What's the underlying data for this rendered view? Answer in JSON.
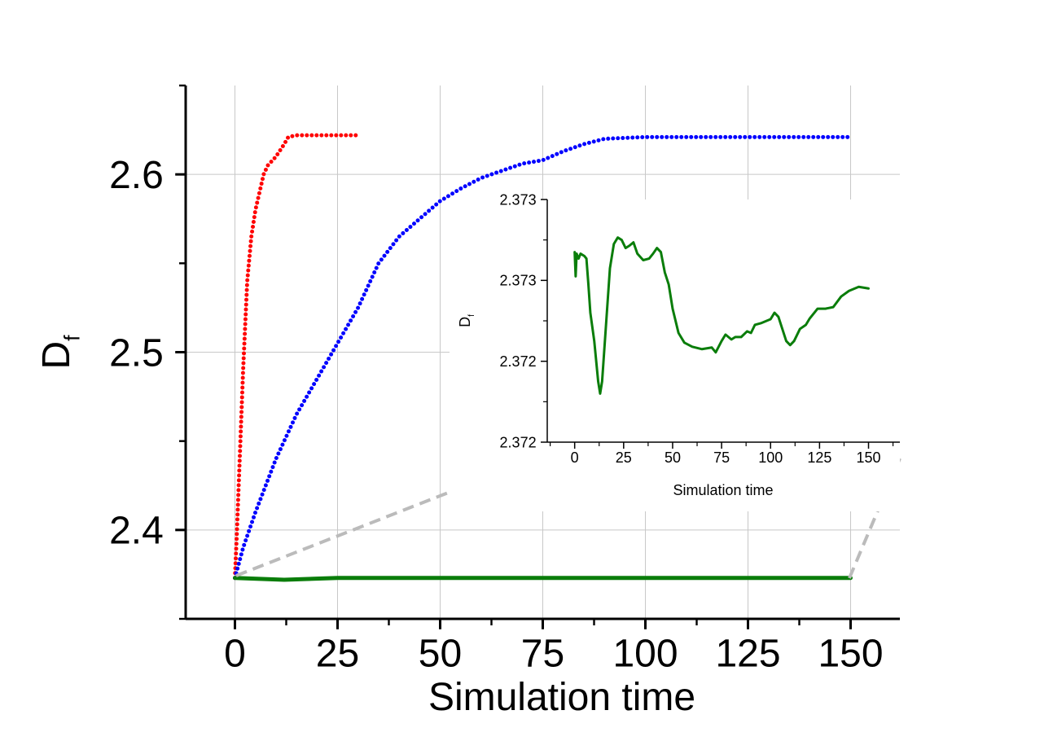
{
  "chart_data": [
    {
      "type": "line",
      "xlabel": "Simulation time",
      "ylabel": "D",
      "ylabel_subscript": "f",
      "xlim": [
        -12,
        162
      ],
      "xticks": [
        0,
        25,
        50,
        75,
        100,
        125,
        150
      ],
      "xminorticks": [
        -12.5,
        12.5,
        37.5,
        62.5,
        87.5,
        112.5,
        137.5,
        162.5
      ],
      "ylim": [
        2.35,
        2.65
      ],
      "yticks": [
        2.4,
        2.5,
        2.6
      ],
      "yminorticks": [
        2.35,
        2.45,
        2.55,
        2.65
      ],
      "grid": true,
      "series": [
        {
          "color": "#ff0000",
          "style": "dotted",
          "x": [
            0,
            0.5,
            1,
            2,
            3,
            4,
            5,
            6,
            7,
            8,
            10,
            12,
            13,
            15,
            20,
            30
          ],
          "values": [
            2.373,
            2.4,
            2.43,
            2.49,
            2.54,
            2.565,
            2.58,
            2.59,
            2.6,
            2.605,
            2.61,
            2.617,
            2.621,
            2.622,
            2.622,
            2.622
          ]
        },
        {
          "color": "#0000ff",
          "style": "dotted",
          "x": [
            0,
            2,
            5,
            10,
            15,
            20,
            25,
            30,
            35,
            40,
            45,
            50,
            55,
            60,
            65,
            70,
            75,
            80,
            85,
            90,
            100,
            120,
            150
          ],
          "values": [
            2.373,
            2.39,
            2.41,
            2.44,
            2.465,
            2.485,
            2.505,
            2.525,
            2.55,
            2.565,
            2.575,
            2.585,
            2.592,
            2.598,
            2.602,
            2.606,
            2.608,
            2.613,
            2.617,
            2.62,
            2.621,
            2.621,
            2.621
          ]
        },
        {
          "color": "#0a7d0a",
          "style": "solid",
          "x": [
            0,
            12,
            25,
            150
          ],
          "values": [
            2.373,
            2.372,
            2.373,
            2.373
          ]
        }
      ]
    },
    {
      "type": "line",
      "xlabel": "Simulation time",
      "ylabel": "D",
      "ylabel_subscript": "f",
      "xlim": [
        -14,
        166
      ],
      "xticks": [
        0,
        25,
        50,
        75,
        100,
        125,
        150
      ],
      "xminorticks": [
        -12.5,
        12.5,
        37.5,
        62.5,
        87.5,
        112.5,
        137.5,
        162.5
      ],
      "ylim": [
        2.3718,
        2.373
      ],
      "yticks": [
        {
          "value": 2.3718,
          "label": "2.372"
        },
        {
          "value": 2.3722,
          "label": "2.372"
        },
        {
          "value": 2.3726,
          "label": "2.373"
        },
        {
          "value": 2.373,
          "label": "2.373"
        }
      ],
      "yminorticks": [
        2.372,
        2.3724,
        2.3728
      ],
      "grid": false,
      "series": [
        {
          "color": "#0a7d0a",
          "style": "solid",
          "x": [
            0,
            0.5,
            1,
            2,
            3,
            5,
            6,
            7,
            8,
            10,
            12,
            13,
            14,
            16,
            18,
            20,
            22,
            24,
            26,
            28,
            30,
            32,
            35,
            38,
            40,
            42,
            44,
            46,
            48,
            50,
            53,
            56,
            60,
            65,
            70,
            72,
            75,
            77,
            80,
            82,
            85,
            88,
            90,
            92,
            95,
            98,
            100,
            102,
            104,
            106,
            108,
            110,
            112,
            115,
            118,
            120,
            124,
            128,
            132,
            136,
            140,
            145,
            150
          ],
          "values": [
            2.37274,
            2.37262,
            2.372732,
            2.372708,
            2.372732,
            2.37272,
            2.372708,
            2.37258,
            2.37244,
            2.3723,
            2.3721,
            2.37204,
            2.3721,
            2.37238,
            2.37266,
            2.37278,
            2.372812,
            2.3728,
            2.37276,
            2.372772,
            2.372788,
            2.372732,
            2.3727,
            2.372708,
            2.372732,
            2.37276,
            2.37274,
            2.37264,
            2.37258,
            2.37246,
            2.37234,
            2.372292,
            2.372272,
            2.37226,
            2.372268,
            2.372244,
            2.3723,
            2.372332,
            2.372308,
            2.37232,
            2.37232,
            2.372348,
            2.37234,
            2.37238,
            2.372388,
            2.3724,
            2.372408,
            2.37244,
            2.37242,
            2.37236,
            2.3723,
            2.37228,
            2.3723,
            2.37236,
            2.37238,
            2.372412,
            2.37246,
            2.37246,
            2.372468,
            2.37252,
            2.372548,
            2.372568,
            2.37256
          ]
        }
      ]
    }
  ]
}
